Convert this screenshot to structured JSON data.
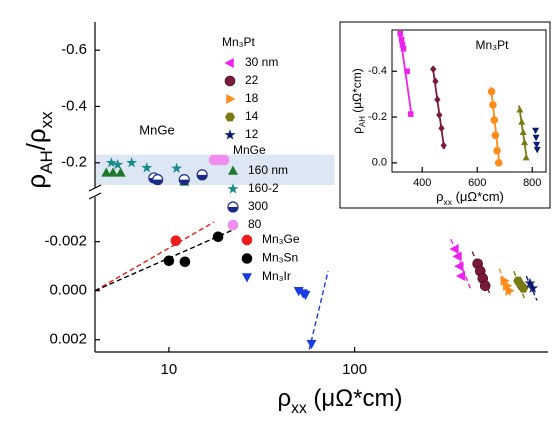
{
  "chart_data": [
    {
      "type": "scatter",
      "ylabel": [
        "ρ",
        "AH",
        "/ρ",
        "xx"
      ],
      "xlim": [
        4,
        1100
      ],
      "xscale": "log",
      "ylim": [
        -0.121,
        -0.7
      ],
      "yticks": [
        -0.6,
        -0.4,
        -0.2
      ],
      "annotation": "MnGe",
      "highlight": {
        "xlim": [
          4,
          78
        ],
        "ylim": [
          -0.121,
          -0.229
        ],
        "color": "#dde6f3"
      },
      "legend_title": "MnGe",
      "series": [
        {
          "name": "160 nm",
          "marker": "triangle-up",
          "color": "#1e7a2a",
          "x": [
            4.6,
            5.0,
            5.5,
            12.1
          ],
          "values": [
            -0.164,
            -0.164,
            -0.164,
            -0.132
          ]
        },
        {
          "name": "160-2",
          "marker": "star",
          "color": "#1a8a8a",
          "x": [
            4.9,
            5.3,
            6.3,
            7.6,
            11
          ],
          "values": [
            -0.2,
            -0.193,
            -0.2,
            -0.182,
            -0.18
          ]
        },
        {
          "name": "300",
          "marker": "half-circle",
          "color": "#1a2a8a",
          "x": [
            8.3,
            8.7,
            12.1,
            15.1
          ],
          "values": [
            -0.146,
            -0.14,
            -0.14,
            -0.157
          ]
        },
        {
          "name": "80",
          "marker": "circle",
          "color": "#f08cf0",
          "x": [
            17.5,
            18.6,
            19.8
          ],
          "values": [
            -0.21,
            -0.21,
            -0.21
          ]
        }
      ]
    },
    {
      "type": "scatter",
      "xlabel": [
        "ρ",
        "xx",
        " (μΩ*cm)"
      ],
      "xlim": [
        4,
        1100
      ],
      "xscale": "log",
      "xticks": [
        10,
        100
      ],
      "ylim": [
        0.0025,
        -0.0037
      ],
      "yticks": [
        -0.002,
        {
          "value": 0,
          "label": "0.000"
        },
        0.002
      ],
      "series_groups": [
        {
          "series": [
            {
              "name": "Mn₃Ge",
              "marker": "circle",
              "color": "#ee1c1c",
              "x": [
                10.9
              ],
              "values": [
                -0.00204
              ]
            },
            {
              "name": "Mn₃Sn",
              "marker": "circle",
              "color": "#000000",
              "x": [
                10,
                12.2,
                18.4
              ],
              "values": [
                -0.00122,
                -0.00118,
                -0.0022
              ]
            },
            {
              "name": "Mn₃Ir",
              "marker": "triangle-down",
              "color": "#1a3ae6",
              "x": [
                50,
                52.8,
                54.4,
                58.6
              ],
              "values": [
                0.0,
                0.0001,
                0.00016,
                0.00216
              ]
            }
          ]
        },
        {
          "title": "Mn₃Pt",
          "series": [
            {
              "name": "30 nm",
              "marker": "triangle-left",
              "color": "#ee22ee",
              "x": [
                347,
                360,
                368,
                376
              ],
              "values": [
                -0.0017,
                -0.0014,
                -0.001,
                -0.0006
              ]
            },
            {
              "name": "22",
              "marker": "sphere",
              "color": "#7a1a3a",
              "x": [
                460,
                475,
                490,
                505
              ],
              "values": [
                -0.0011,
                -0.0008,
                -0.0005,
                -0.0002
              ]
            },
            {
              "name": "18",
              "marker": "triangle-right",
              "color": "#ff8c1a",
              "x": [
                640,
                660,
                680
              ],
              "values": [
                -0.0004,
                -0.0002,
                0.0
              ]
            },
            {
              "name": "14",
              "marker": "hexagon",
              "color": "#7a7a14",
              "x": [
                760,
                790,
                810
              ],
              "values": [
                -0.0004,
                -0.0002,
                -0.0001
              ]
            },
            {
              "name": "12",
              "marker": "star",
              "color": "#0a1a6e",
              "x": [
                880,
                910
              ],
              "values": [
                -0.0003,
                -0.0001
              ]
            }
          ]
        }
      ],
      "fits": [
        {
          "color": "#ee1c1c",
          "style": "dashed",
          "x": [
            4,
            17.5
          ],
          "y": [
            0,
            -0.0028
          ]
        },
        {
          "color": "#000000",
          "style": "dashed",
          "x": [
            4,
            22.4
          ],
          "y": [
            0,
            -0.0025
          ]
        },
        {
          "color": "#1a3ae6",
          "style": "dashed",
          "x": [
            57,
            72
          ],
          "y": [
            0.0024,
            -0.0008
          ]
        },
        {
          "color": "#ee22ee",
          "style": "dashed",
          "x": [
            330,
            420
          ],
          "y": [
            -0.0021,
            -0.0001
          ]
        },
        {
          "color": "#7a1a3a",
          "style": "dashed",
          "x": [
            430,
            540
          ],
          "y": [
            -0.0016,
            0.0002
          ]
        },
        {
          "color": "#ff8c1a",
          "style": "dashed",
          "x": [
            600,
            700
          ],
          "y": [
            -0.0009,
            0.0003
          ]
        },
        {
          "color": "#7a7a14",
          "style": "dashed",
          "x": [
            720,
            830
          ],
          "y": [
            -0.0008,
            0.0004
          ]
        },
        {
          "color": "#0a1a6e",
          "style": "dashed",
          "x": [
            840,
            960
          ],
          "y": [
            -0.0006,
            0.0004
          ]
        }
      ]
    },
    {
      "type": "scatter",
      "title": "Mn₃Pt",
      "xlabel": [
        "ρ",
        "xx",
        " (μΩ*cm)"
      ],
      "ylabel": [
        "ρ",
        "AH",
        " (μΩ*cm)"
      ],
      "xlim": [
        290,
        850
      ],
      "xticks": [
        400,
        600,
        800
      ],
      "ylim": [
        0.04,
        -0.58
      ],
      "yticks": [
        -0.4,
        -0.2,
        {
          "value": 0,
          "label": "0.0"
        }
      ],
      "series": [
        {
          "marker": "square",
          "color": "#ee22ee",
          "x": [
            320,
            325,
            328,
            332,
            345,
            358
          ],
          "values": [
            -0.564,
            -0.538,
            -0.515,
            -0.498,
            -0.4,
            -0.213
          ]
        },
        {
          "marker": "diamond",
          "color": "#7a1a3a",
          "x": [
            440,
            448,
            455,
            462,
            470,
            478
          ],
          "values": [
            -0.409,
            -0.356,
            -0.276,
            -0.209,
            -0.151,
            -0.076
          ]
        },
        {
          "marker": "circle",
          "color": "#ff8c1a",
          "x": [
            652,
            657,
            662,
            666,
            672,
            678
          ],
          "values": [
            -0.311,
            -0.253,
            -0.187,
            -0.12,
            -0.053,
            0.0
          ]
        },
        {
          "marker": "triangle-up",
          "color": "#7a7a14",
          "x": [
            755,
            762,
            767,
            772,
            778
          ],
          "values": [
            -0.231,
            -0.178,
            -0.133,
            -0.089,
            -0.022
          ]
        },
        {
          "marker": "triangle-down",
          "color": "#0a1a6e",
          "x": [
            812,
            814,
            816,
            818
          ],
          "values": [
            -0.142,
            -0.111,
            -0.08,
            -0.058
          ]
        }
      ],
      "fits": [
        {
          "color": "#ee22ee",
          "style": "solid",
          "x": [
            318,
            362
          ],
          "y": [
            -0.57,
            -0.2
          ]
        },
        {
          "color": "#7a1a3a",
          "style": "solid",
          "x": [
            438,
            480
          ],
          "y": [
            -0.42,
            -0.06
          ]
        },
        {
          "color": "#ff8c1a",
          "style": "solid",
          "x": [
            650,
            680
          ],
          "y": [
            -0.33,
            0.0
          ]
        },
        {
          "color": "#7a7a14",
          "style": "solid",
          "x": [
            752,
            780
          ],
          "y": [
            -0.25,
            -0.02
          ]
        }
      ]
    }
  ]
}
